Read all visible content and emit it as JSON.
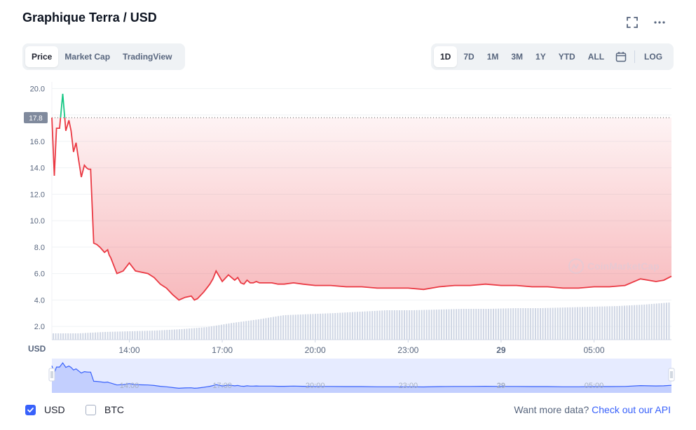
{
  "header": {
    "title": "Graphique Terra / USD",
    "fullscreen_icon": "fullscreen-icon",
    "more_icon": "more-icon"
  },
  "view_tabs": [
    {
      "label": "Price",
      "active": true
    },
    {
      "label": "Market Cap",
      "active": false
    },
    {
      "label": "TradingView",
      "active": false
    }
  ],
  "range_tabs": [
    {
      "label": "1D",
      "active": true
    },
    {
      "label": "7D",
      "active": false
    },
    {
      "label": "1M",
      "active": false
    },
    {
      "label": "3M",
      "active": false
    },
    {
      "label": "1Y",
      "active": false
    },
    {
      "label": "YTD",
      "active": false
    },
    {
      "label": "ALL",
      "active": false
    }
  ],
  "calendar_icon": "calendar-icon",
  "log_label": "LOG",
  "currency_toggles": [
    {
      "label": "USD",
      "checked": true
    },
    {
      "label": "BTC",
      "checked": false
    }
  ],
  "api": {
    "text": "Want more data?",
    "link": "Check out our API"
  },
  "watermark": "CoinMarketCap",
  "colors": {
    "line_up": "#16c784",
    "line_down": "#ea3943",
    "accent": "#3861fb",
    "navigator": "#3861fb"
  },
  "chart_data": {
    "type": "line",
    "y_unit_label": "USD",
    "ylim": [
      1.0,
      20.5
    ],
    "y_ticks": [
      "2.0",
      "4.0",
      "6.0",
      "8.0",
      "10.0",
      "12.0",
      "14.0",
      "16.0",
      "18.0",
      "20.0"
    ],
    "x_hours": [
      11.5,
      31.5
    ],
    "x_ticks": [
      {
        "label": "14:00",
        "hour": 14,
        "bold": false
      },
      {
        "label": "17:00",
        "hour": 17,
        "bold": false
      },
      {
        "label": "20:00",
        "hour": 20,
        "bold": false
      },
      {
        "label": "23:00",
        "hour": 23,
        "bold": false
      },
      {
        "label": "29",
        "hour": 26,
        "bold": true
      },
      {
        "label": "05:00",
        "hour": 29,
        "bold": false
      }
    ],
    "reference_price": 17.8,
    "reference_label": "17.8",
    "grid": true,
    "series": [
      {
        "x": [
          11.5,
          11.58,
          11.65,
          11.75,
          11.85,
          11.95,
          12.05,
          12.12,
          12.2,
          12.28,
          12.35,
          12.45,
          12.55,
          12.62,
          12.68,
          12.75,
          12.85,
          12.95,
          13.05,
          13.2,
          13.3,
          13.35,
          13.4,
          13.5,
          13.6,
          13.8,
          14.0,
          14.2,
          14.4,
          14.6,
          14.8,
          15.0,
          15.2,
          15.4,
          15.6,
          15.8,
          16.0,
          16.1,
          16.2,
          16.4,
          16.5,
          16.6,
          16.7,
          16.8,
          17.0,
          17.2,
          17.4,
          17.5,
          17.6,
          17.7,
          17.8,
          17.9,
          18.0,
          18.1,
          18.2,
          18.4,
          18.6,
          18.8,
          19.0,
          19.3,
          19.6,
          20.0,
          20.5,
          21.0,
          21.5,
          22.0,
          22.5,
          23.0,
          23.5,
          24.0,
          24.5,
          25.0,
          25.5,
          26.0,
          26.5,
          27.0,
          27.5,
          28.0,
          28.5,
          29.0,
          29.5,
          30.0,
          30.5,
          31.0,
          31.25,
          31.5
        ],
        "y": [
          17.8,
          13.4,
          17.0,
          17.0,
          19.6,
          16.8,
          17.6,
          16.8,
          15.2,
          15.9,
          14.8,
          13.3,
          14.2,
          14.0,
          13.9,
          13.9,
          8.3,
          8.2,
          8.0,
          7.6,
          7.8,
          7.4,
          7.2,
          6.6,
          6.0,
          6.2,
          6.8,
          6.2,
          6.1,
          6.0,
          5.7,
          5.2,
          4.9,
          4.4,
          4.0,
          4.2,
          4.3,
          4.0,
          4.1,
          4.6,
          4.9,
          5.2,
          5.6,
          6.2,
          5.4,
          5.9,
          5.5,
          5.7,
          5.3,
          5.2,
          5.5,
          5.3,
          5.3,
          5.4,
          5.3,
          5.3,
          5.3,
          5.2,
          5.2,
          5.3,
          5.2,
          5.1,
          5.1,
          5.0,
          5.0,
          4.9,
          4.9,
          4.9,
          4.8,
          5.0,
          5.1,
          5.1,
          5.2,
          5.1,
          5.1,
          5.0,
          5.0,
          4.9,
          4.9,
          5.0,
          5.0,
          5.1,
          5.6,
          5.4,
          5.5,
          5.8
        ]
      }
    ],
    "volume_level": [
      0.1,
      0.1,
      0.14,
      0.16,
      0.18,
      0.22,
      0.28,
      0.4,
      0.5,
      0.62,
      0.65,
      0.68,
      0.72,
      0.76,
      0.76,
      0.78,
      0.8,
      0.8,
      0.82,
      0.82,
      0.84,
      0.86,
      0.88,
      0.92,
      0.98
    ]
  }
}
